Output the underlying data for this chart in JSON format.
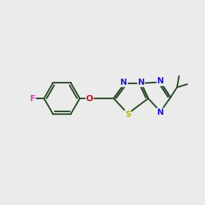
{
  "background_color": "#ebebeb",
  "bond_color": "#2a4a2a",
  "N_color": "#1a1acc",
  "S_color": "#bbbb00",
  "O_color": "#cc1111",
  "F_color": "#dd44aa",
  "lw": 1.6,
  "figsize": [
    3.0,
    3.0
  ],
  "dpi": 100,
  "xlim": [
    0,
    10
  ],
  "ylim": [
    0,
    10
  ]
}
